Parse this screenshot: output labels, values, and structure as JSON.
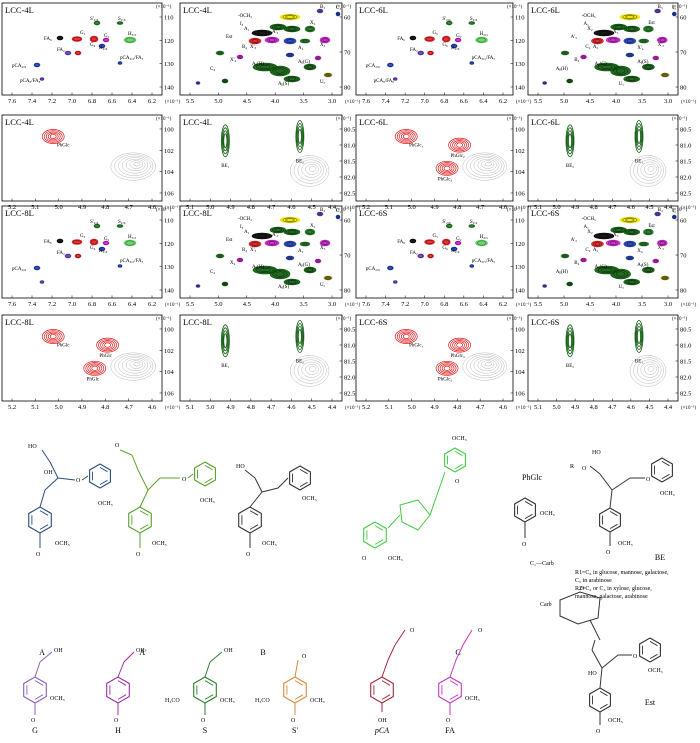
{
  "colors": {
    "black": "#000000",
    "red": "#e41a1c",
    "darkred": "#b30000",
    "green": "#1e7b1e",
    "darkgreen": "#0b5a0b",
    "blue": "#1f3fbf",
    "magenta": "#d21fd2",
    "yellow": "#f2e600",
    "olive": "#8c7d10",
    "lightgreen": "#5fd35f",
    "purple": "#6a3fbf",
    "gray": "#9a9a9a",
    "teal": "#1d8c8c",
    "stroke_A": "#2b4c7e",
    "stroke_Ap": "#5aa02c",
    "stroke_B": "#333333",
    "stroke_C": "#44cc44",
    "stroke_G": "#8a5fbf",
    "stroke_H": "#9a2fa6",
    "stroke_S": "#2e7d2e",
    "stroke_Sp": "#d98a3a",
    "stroke_pCA": "#a3293d",
    "stroke_FA": "#c23ac2",
    "stroke_Est": "#333333"
  },
  "icons": [
    "contour-spot-icon",
    "benzene-ring-icon",
    "glucose-ring-icon",
    "ketone-icon"
  ],
  "units": "(×10⁻¹)",
  "panels": [
    {
      "title": "LCC-4L",
      "type": "arom",
      "x_ticks": [
        "7.6",
        "7.4",
        "7.2",
        "7.0",
        "6.8",
        "6.6",
        "6.4",
        "6.2"
      ],
      "y_ticks": [
        "110",
        "120",
        "130",
        "140"
      ],
      "labels": [
        "S'₂,₆",
        "S₂,₆",
        "FA₆",
        "G₅",
        "G₆",
        "H₃,₅",
        "G₂",
        "FA₂",
        "H₂,₆",
        "pCA₂,₆",
        "pCA₃,₅/FA₅",
        "pCA₈/FA₈"
      ]
    },
    {
      "title": "LCC-4L",
      "type": "side",
      "x_ticks": [
        "5.5",
        "5.0",
        "4.5",
        "4.0",
        "3.5",
        "3.0"
      ],
      "y_ticks": [
        "60",
        "70",
        "80"
      ],
      "labels": [
        "-OCH₃",
        "B₃",
        "C₃",
        "I₃",
        "A₁",
        "X₂",
        "Est",
        "A'₃",
        "X₃",
        "X'₃",
        "A₂",
        "X'₄",
        "B₄",
        "C₄",
        "Aᵦ(H)",
        "Aᵦ(G)",
        "Aᵦ(S)",
        "Uₐ"
      ]
    },
    {
      "title": "LCC-6L",
      "type": "arom",
      "x_ticks": [
        "7.6",
        "7.4",
        "7.2",
        "7.0",
        "6.8",
        "6.6",
        "6.4",
        "6.2"
      ],
      "y_ticks": [
        "110",
        "120",
        "130",
        "140"
      ],
      "labels": [
        "S'₂,₆",
        "S₂,₆",
        "FA₆",
        "G₅",
        "G₆",
        "H₃,₅",
        "G₂",
        "FA₂",
        "H₂,₆",
        "pCA₂,₆",
        "pCA₃,₅/FA₅",
        "pCA₈/FA₈"
      ]
    },
    {
      "title": "LCC-6L",
      "type": "side",
      "x_ticks": [
        "5.5",
        "5.0",
        "4.5",
        "4.0",
        "3.5",
        "3.0"
      ],
      "y_ticks": [
        "60",
        "70",
        "80"
      ],
      "labels": [
        "-OCH₃",
        "B₃",
        "I₃",
        "A₁",
        "X₂",
        "Est",
        "A'₃",
        "X₃",
        "X'₃",
        "A₂",
        "X'₄",
        "B₄",
        "C₄",
        "Aᵦ(H)",
        "Aᵦ(G)",
        "Aᵦ(S)",
        "Uₐ"
      ]
    },
    {
      "title": "LCC-4L",
      "type": "glc",
      "x_ticks": [
        "5.2",
        "5.1",
        "5.0",
        "4.9",
        "4.8",
        "4.7",
        "4.6"
      ],
      "y_ticks": [
        "100",
        "102",
        "104",
        "106"
      ],
      "labels": [
        "PhGlc"
      ]
    },
    {
      "title": "LCC-4L",
      "type": "be",
      "x_ticks": [
        "5.1",
        "5.0",
        "4.9",
        "4.8",
        "4.7",
        "4.6",
        "4.5",
        "4.4"
      ],
      "y_ticks": [
        "80.5",
        "81.0",
        "81.5",
        "82.0",
        "82.5"
      ],
      "labels": [
        "BE₁",
        "BE₂"
      ]
    },
    {
      "title": "LCC-6L",
      "type": "glc",
      "x_ticks": [
        "5.2",
        "5.1",
        "5.0",
        "4.9",
        "4.8",
        "4.7",
        "4.6"
      ],
      "y_ticks": [
        "100",
        "102",
        "104",
        "106"
      ],
      "labels": [
        "PhGlc₁",
        "PhGlc₂",
        "PhGlc₃"
      ]
    },
    {
      "title": "LCC-6L",
      "type": "be",
      "x_ticks": [
        "5.1",
        "5.0",
        "4.9",
        "4.8",
        "4.7",
        "4.6",
        "4.5",
        "4.4"
      ],
      "y_ticks": [
        "80.5",
        "81.0",
        "81.5",
        "82.0",
        "82.5"
      ],
      "labels": [
        "BE₂",
        "BE₁"
      ]
    },
    {
      "title": "LCC-8L",
      "type": "arom",
      "x_ticks": [
        "7.6",
        "7.4",
        "7.2",
        "7.0",
        "6.8",
        "6.6",
        "6.4",
        "6.2"
      ],
      "y_ticks": [
        "110",
        "120",
        "130",
        "140"
      ],
      "labels": [
        "S'₂,₆",
        "S₂,₆",
        "FA₆",
        "G₅",
        "G₆",
        "H₃,₅",
        "G₂",
        "FA₂",
        "H₂,₆",
        "pCA₂,₆",
        "pCA₃,₅/FA₅"
      ]
    },
    {
      "title": "LCC-8L",
      "type": "side",
      "x_ticks": [
        "5.5",
        "5.0",
        "4.5",
        "4.0",
        "3.5",
        "3.0"
      ],
      "y_ticks": [
        "60",
        "70",
        "80"
      ],
      "labels": [
        "-OCH₃",
        "B₃",
        "C₃",
        "I₃",
        "A₁",
        "X₂",
        "Est",
        "A'₃",
        "X₃",
        "X'₃",
        "A₂",
        "X₄",
        "B₄",
        "C₄",
        "Aᵦ(H)",
        "Aᵦ(G)",
        "Aᵦ(S)",
        "Uₐ"
      ]
    },
    {
      "title": "LCC-6S",
      "type": "arom",
      "x_ticks": [
        "7.6",
        "7.4",
        "7.2",
        "7.0",
        "6.8",
        "6.6",
        "6.4",
        "6.2"
      ],
      "y_ticks": [
        "110",
        "120",
        "130",
        "140"
      ],
      "labels": [
        "S'₂,₆",
        "S₂,₆",
        "FA₆",
        "G₅",
        "G₆",
        "H₃,₅",
        "G₂",
        "FA₂",
        "H₂,₆",
        "pCA₂,₆",
        "pCA₃,₅/FA₅"
      ]
    },
    {
      "title": "LCC-6S",
      "type": "side",
      "x_ticks": [
        "5.5",
        "5.0",
        "4.5",
        "4.0",
        "3.5",
        "3.0"
      ],
      "y_ticks": [
        "60",
        "70",
        "80"
      ],
      "labels": [
        "-OCH₃",
        "B₃",
        "I₃",
        "A₁",
        "X₂",
        "Est",
        "A'₃",
        "X₃",
        "X'₃",
        "A₂",
        "X₄",
        "B₄",
        "C₄",
        "Aᵦ(H)",
        "Aᵦ(G)",
        "Aᵦ(S)",
        "Uₐ"
      ]
    },
    {
      "title": "LCC-8L",
      "type": "glc",
      "x_ticks": [
        "5.2",
        "5.1",
        "5.0",
        "4.9",
        "4.8",
        "4.7",
        "4.6"
      ],
      "y_ticks": [
        "100",
        "102",
        "104",
        "106"
      ],
      "labels": [
        "PhGlc",
        "PhGlc",
        "PhGlc"
      ]
    },
    {
      "title": "LCC-8L",
      "type": "be",
      "x_ticks": [
        "5.1",
        "5.0",
        "4.9",
        "4.8",
        "4.7",
        "4.6",
        "4.5",
        "4.4"
      ],
      "y_ticks": [
        "80.5",
        "81.0",
        "81.5",
        "82.0",
        "82.5"
      ],
      "labels": [
        "BE₁",
        "BE₂"
      ]
    },
    {
      "title": "LCC-6S",
      "type": "glc",
      "x_ticks": [
        "5.2",
        "5.1",
        "5.0",
        "4.9",
        "4.8",
        "4.7",
        "4.6"
      ],
      "y_ticks": [
        "100",
        "102",
        "104",
        "106"
      ],
      "labels": [
        "PhGlc₁",
        "PhGlc₃",
        "PhGlc₂"
      ]
    },
    {
      "title": "LCC-6S",
      "type": "be",
      "x_ticks": [
        "5.1",
        "5.0",
        "4.9",
        "4.8",
        "4.7",
        "4.6",
        "4.5",
        "4.4"
      ],
      "y_ticks": [
        "80.5",
        "81.0",
        "81.5",
        "82.0",
        "82.5"
      ],
      "labels": [
        "BE₂",
        "BE₁"
      ]
    }
  ],
  "structures": {
    "A": "A",
    "Ap": "A'",
    "B": "B",
    "C": "C",
    "PhGlc": "PhGlc",
    "BE": "BE",
    "G": "G",
    "H": "H",
    "S": "S",
    "Sp": "S'",
    "pCA": "pCA",
    "FA": "FA",
    "Est": "Est",
    "OCH3": "OCH₃",
    "H3CO": "H₃CO",
    "OH": "OH",
    "HO": "HO",
    "O": "O",
    "Carb": "Carb",
    "R": "R",
    "C1Carb": "C₁—Carb",
    "BE_note": [
      "R1=C₆ in glucose, mannose, galactose,",
      "C₅ in arabinose",
      "R2=C₂ or C₃ in xylose, glucose,",
      "mannose, galactose, arabinose"
    ]
  }
}
